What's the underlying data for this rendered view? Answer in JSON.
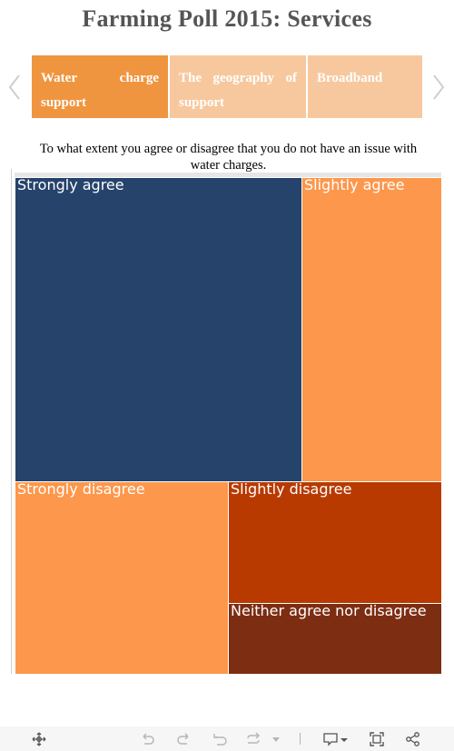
{
  "header": {
    "title": "Farming Poll 2015: Services"
  },
  "tabs": [
    {
      "label": "Water charge support",
      "color": "#f0953f",
      "active": true
    },
    {
      "label": "The geography of support",
      "color": "#f7c89e",
      "active": false
    },
    {
      "label": "Broadband",
      "color": "#f7c89e",
      "active": false
    }
  ],
  "question": "To what extent you agree or disagree that you do not have an issue with water charges.",
  "chart_data": {
    "type": "treemap",
    "items": [
      {
        "label": "Strongly agree",
        "color": "#26436b"
      },
      {
        "label": "Slightly agree",
        "color": "#fd974b"
      },
      {
        "label": "Strongly disagree",
        "color": "#fd974b"
      },
      {
        "label": "Slightly disagree",
        "color": "#b83a00"
      },
      {
        "label": "Neither agree nor disagree",
        "color": "#7c2d12"
      }
    ]
  },
  "toolbar": {
    "icons": [
      "move-icon",
      "undo-icon",
      "redo-icon",
      "revert-icon",
      "repeat-icon",
      "dropdown-icon",
      "comment-icon",
      "fullscreen-icon",
      "share-icon"
    ]
  }
}
